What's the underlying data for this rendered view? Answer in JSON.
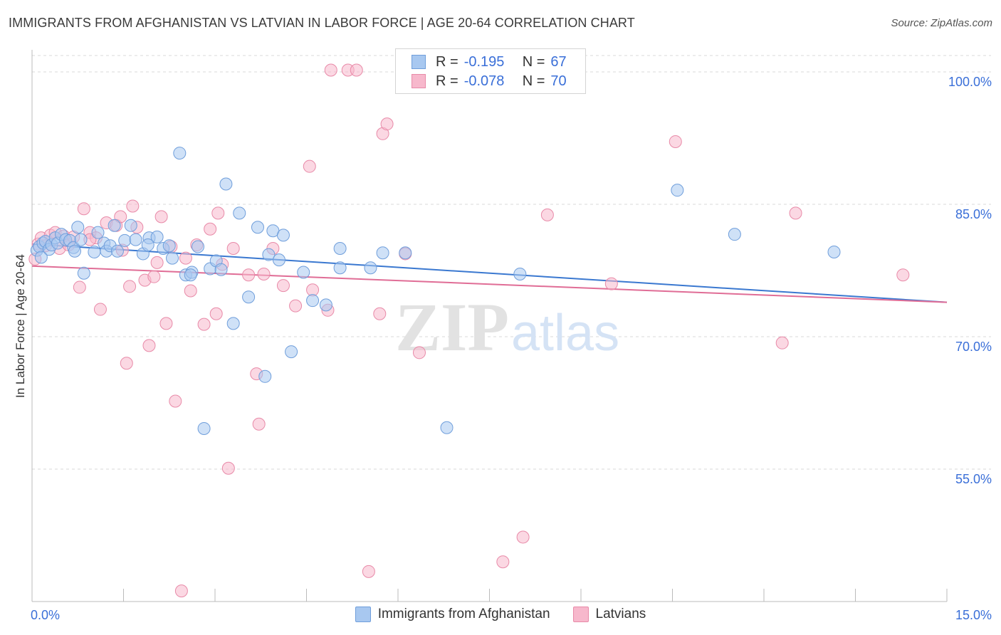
{
  "title": "IMMIGRANTS FROM AFGHANISTAN VS LATVIAN IN LABOR FORCE | AGE 20-64 CORRELATION CHART",
  "source": "Source: ZipAtlas.com",
  "watermark": {
    "zip": "ZIP",
    "atlas": "atlas"
  },
  "colors": {
    "blue": "#a8c8f0",
    "blue_edge": "#6f9edb",
    "blue_line": "#3a78d0",
    "pink": "#f7b8cc",
    "pink_edge": "#e88aa8",
    "pink_line": "#e06d96",
    "tick_label": "#3a6fd8",
    "grid": "#d8d8d8"
  },
  "legend": {
    "rows": [
      {
        "r_label": "R =",
        "r_value": "-0.195",
        "n_label": "N =",
        "n_value": "67"
      },
      {
        "r_label": "R =",
        "r_value": "-0.078",
        "n_label": "N =",
        "n_value": "70"
      }
    ]
  },
  "chart_data": {
    "type": "scatter",
    "title": "IMMIGRANTS FROM AFGHANISTAN VS LATVIAN IN LABOR FORCE | AGE 20-64 CORRELATION CHART",
    "xlabel": "",
    "ylabel": "In Labor Force | Age 20-64",
    "xlim": [
      0,
      15
    ],
    "ylim": [
      40,
      102.5
    ],
    "x_tick_labels": [
      "0.0%",
      "15.0%"
    ],
    "y_ticks": [
      55,
      70,
      85,
      100
    ],
    "y_tick_labels": [
      "55.0%",
      "70.0%",
      "85.0%",
      "100.0%"
    ],
    "grid": "horizontal dashed",
    "legend_position": "top-center",
    "series": [
      {
        "name": "Immigrants from Afghanistan",
        "color": "#a8c8f0",
        "trend": {
          "x": [
            0,
            15
          ],
          "y": [
            80.5,
            73.9
          ]
        },
        "points": [
          [
            0.08,
            79.8
          ],
          [
            0.12,
            80.2
          ],
          [
            0.18,
            80.6
          ],
          [
            0.22,
            80.8
          ],
          [
            0.28,
            79.9
          ],
          [
            0.32,
            80.4
          ],
          [
            0.38,
            81.2
          ],
          [
            0.42,
            80.6
          ],
          [
            0.48,
            81.6
          ],
          [
            0.55,
            81.0
          ],
          [
            0.62,
            80.9
          ],
          [
            0.68,
            80.1
          ],
          [
            0.75,
            82.4
          ],
          [
            0.8,
            81.0
          ],
          [
            0.85,
            77.2
          ],
          [
            1.02,
            79.6
          ],
          [
            1.08,
            81.8
          ],
          [
            1.18,
            80.6
          ],
          [
            1.22,
            79.7
          ],
          [
            1.28,
            80.3
          ],
          [
            1.35,
            82.6
          ],
          [
            1.4,
            79.7
          ],
          [
            1.52,
            80.9
          ],
          [
            1.62,
            82.6
          ],
          [
            1.7,
            81.0
          ],
          [
            1.82,
            79.4
          ],
          [
            1.92,
            81.2
          ],
          [
            2.05,
            81.3
          ],
          [
            2.15,
            80.0
          ],
          [
            2.25,
            80.3
          ],
          [
            2.42,
            90.8
          ],
          [
            2.52,
            77.0
          ],
          [
            2.62,
            77.3
          ],
          [
            2.72,
            80.2
          ],
          [
            2.82,
            59.6
          ],
          [
            2.92,
            77.7
          ],
          [
            3.02,
            78.6
          ],
          [
            3.1,
            77.6
          ],
          [
            3.18,
            87.3
          ],
          [
            3.3,
            71.5
          ],
          [
            3.4,
            84.0
          ],
          [
            3.55,
            74.5
          ],
          [
            3.7,
            82.4
          ],
          [
            3.82,
            65.5
          ],
          [
            3.88,
            79.3
          ],
          [
            3.95,
            82.0
          ],
          [
            4.05,
            78.7
          ],
          [
            4.12,
            81.5
          ],
          [
            4.25,
            68.3
          ],
          [
            4.45,
            77.3
          ],
          [
            4.6,
            74.1
          ],
          [
            4.82,
            73.6
          ],
          [
            5.05,
            77.8
          ],
          [
            5.05,
            80.0
          ],
          [
            5.55,
            77.8
          ],
          [
            5.75,
            79.5
          ],
          [
            6.12,
            79.5
          ],
          [
            6.8,
            59.7
          ],
          [
            8.0,
            77.1
          ],
          [
            10.58,
            86.6
          ],
          [
            11.52,
            81.6
          ],
          [
            13.15,
            79.6
          ],
          [
            0.15,
            79.0
          ],
          [
            0.7,
            79.7
          ],
          [
            1.9,
            80.4
          ],
          [
            2.3,
            78.9
          ],
          [
            2.6,
            77.0
          ]
        ]
      },
      {
        "name": "Latvians",
        "color": "#f7b8cc",
        "trend": {
          "x": [
            0,
            15
          ],
          "y": [
            78.0,
            73.9
          ]
        },
        "points": [
          [
            0.05,
            78.8
          ],
          [
            0.1,
            80.5
          ],
          [
            0.15,
            81.2
          ],
          [
            0.22,
            80.3
          ],
          [
            0.3,
            81.5
          ],
          [
            0.38,
            81.8
          ],
          [
            0.45,
            80.0
          ],
          [
            0.52,
            81.4
          ],
          [
            0.6,
            80.4
          ],
          [
            0.68,
            81.3
          ],
          [
            0.78,
            75.6
          ],
          [
            0.85,
            84.5
          ],
          [
            0.95,
            81.8
          ],
          [
            1.05,
            81.2
          ],
          [
            1.12,
            73.1
          ],
          [
            1.22,
            82.9
          ],
          [
            1.38,
            82.6
          ],
          [
            1.45,
            83.6
          ],
          [
            1.55,
            67.0
          ],
          [
            1.6,
            75.7
          ],
          [
            1.65,
            84.8
          ],
          [
            1.72,
            82.4
          ],
          [
            1.85,
            76.4
          ],
          [
            1.92,
            69.0
          ],
          [
            2.0,
            76.8
          ],
          [
            2.05,
            78.4
          ],
          [
            2.12,
            83.6
          ],
          [
            2.2,
            71.5
          ],
          [
            2.28,
            80.2
          ],
          [
            2.35,
            62.7
          ],
          [
            2.45,
            41.2
          ],
          [
            2.52,
            78.9
          ],
          [
            2.6,
            75.2
          ],
          [
            2.7,
            80.4
          ],
          [
            2.82,
            71.4
          ],
          [
            2.92,
            82.2
          ],
          [
            3.02,
            72.6
          ],
          [
            3.05,
            84.0
          ],
          [
            3.12,
            78.2
          ],
          [
            3.22,
            55.1
          ],
          [
            3.3,
            80.0
          ],
          [
            3.55,
            77.0
          ],
          [
            3.68,
            65.8
          ],
          [
            3.72,
            60.1
          ],
          [
            3.8,
            77.1
          ],
          [
            3.95,
            80.0
          ],
          [
            4.12,
            75.8
          ],
          [
            4.32,
            73.5
          ],
          [
            4.55,
            89.3
          ],
          [
            4.6,
            75.3
          ],
          [
            4.85,
            73.0
          ],
          [
            4.9,
            100.2
          ],
          [
            5.18,
            100.2
          ],
          [
            5.32,
            100.2
          ],
          [
            5.52,
            43.4
          ],
          [
            5.7,
            72.6
          ],
          [
            5.75,
            93.0
          ],
          [
            5.82,
            94.1
          ],
          [
            6.12,
            79.4
          ],
          [
            6.35,
            68.2
          ],
          [
            7.72,
            44.5
          ],
          [
            8.05,
            47.3
          ],
          [
            8.45,
            83.8
          ],
          [
            9.5,
            76.0
          ],
          [
            10.55,
            92.1
          ],
          [
            12.3,
            69.3
          ],
          [
            12.52,
            84.0
          ],
          [
            14.28,
            77.0
          ],
          [
            0.95,
            81.0
          ],
          [
            1.48,
            79.8
          ]
        ]
      }
    ]
  },
  "bottom_legend": {
    "items": [
      {
        "label": "Immigrants from Afghanistan"
      },
      {
        "label": "Latvians"
      }
    ]
  }
}
